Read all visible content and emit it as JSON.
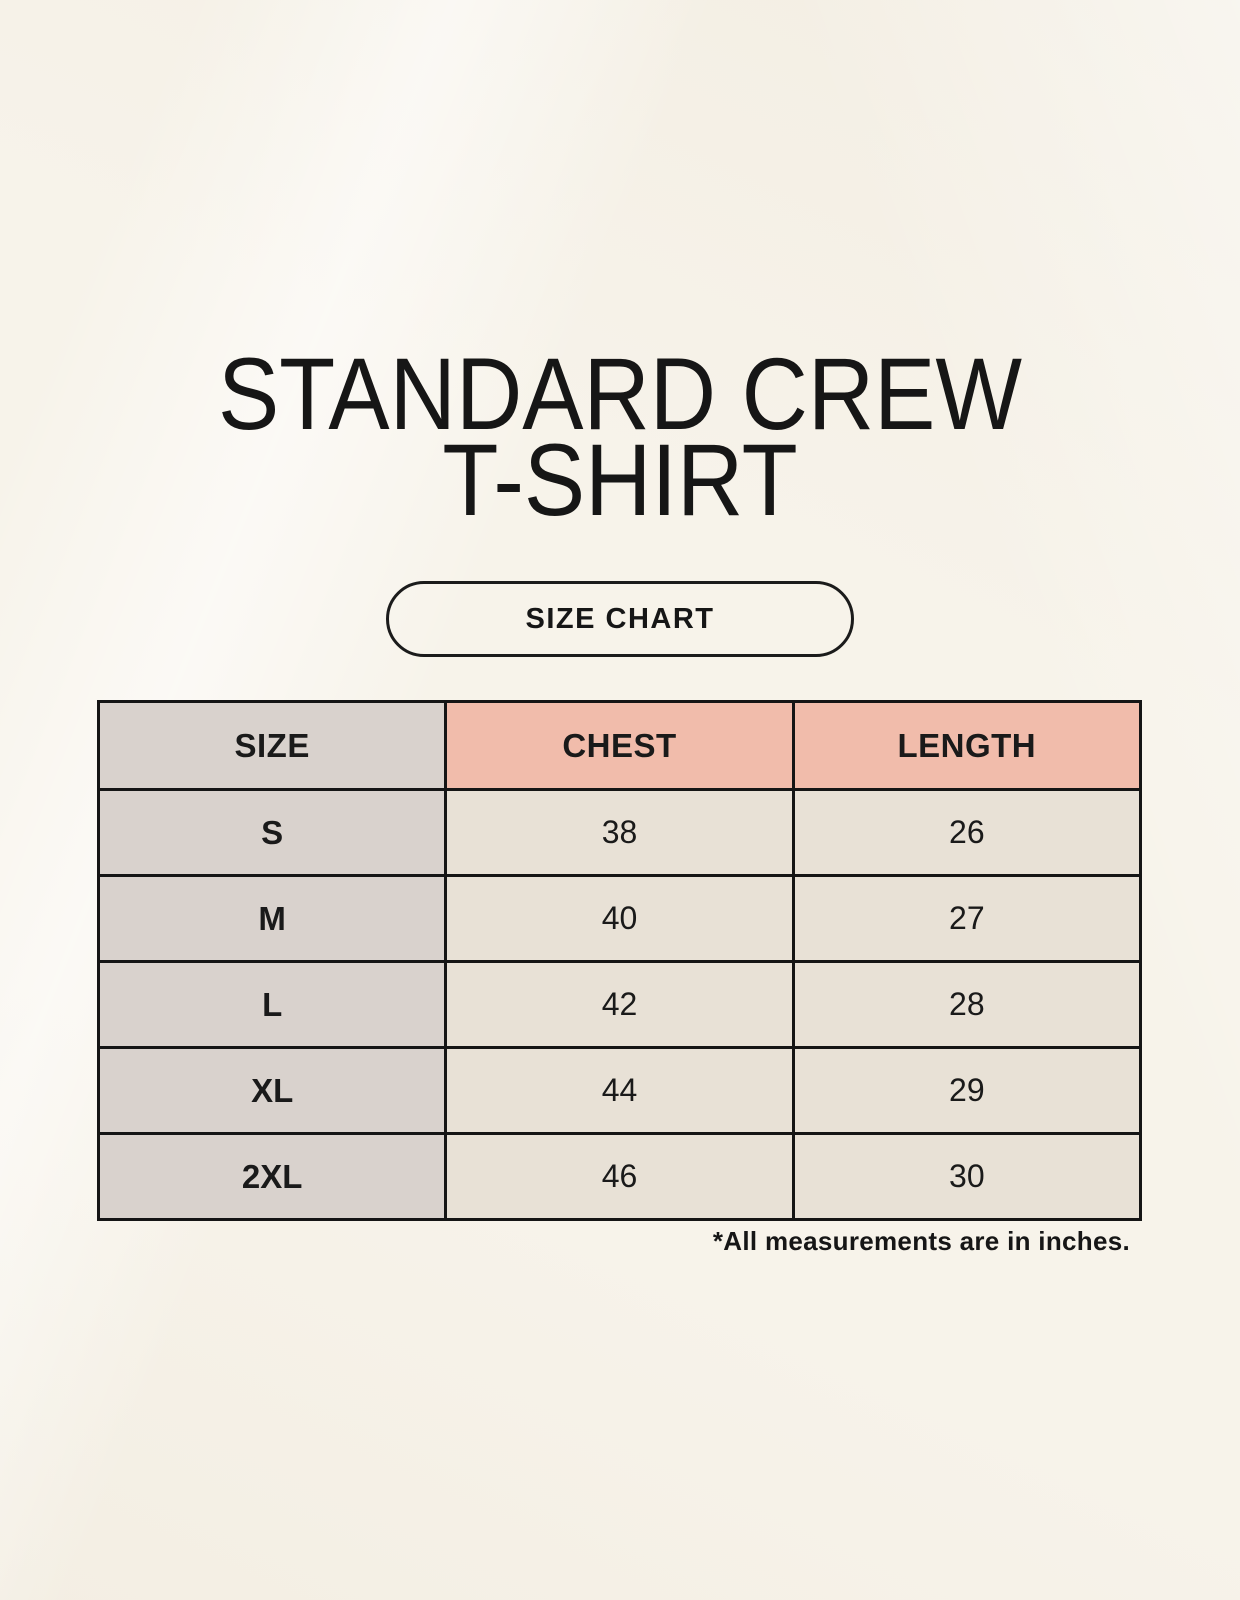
{
  "header": {
    "title_line1": "STANDARD CREW",
    "title_line2": "T-SHIRT",
    "badge_label": "SIZE CHART"
  },
  "table": {
    "columns": [
      "SIZE",
      "CHEST",
      "LENGTH"
    ],
    "rows": [
      {
        "size": "S",
        "chest": "38",
        "length": "26"
      },
      {
        "size": "M",
        "chest": "40",
        "length": "27"
      },
      {
        "size": "L",
        "chest": "42",
        "length": "28"
      },
      {
        "size": "XL",
        "chest": "44",
        "length": "29"
      },
      {
        "size": "2XL",
        "chest": "46",
        "length": "30"
      }
    ]
  },
  "footnote": "*All measurements are in inches.",
  "colors": {
    "page_background": "#f7f3ea",
    "header_pink": "#f1bcab",
    "size_column_gray": "#d9d2cd",
    "value_cell_cream": "#e8e1d6",
    "border_black": "#151515",
    "text_black": "#161616"
  },
  "chart_data": {
    "type": "table",
    "title": "STANDARD CREW T-SHIRT",
    "columns": [
      "SIZE",
      "CHEST",
      "LENGTH"
    ],
    "rows": [
      [
        "S",
        38,
        26
      ],
      [
        "M",
        40,
        27
      ],
      [
        "L",
        42,
        28
      ],
      [
        "XL",
        44,
        29
      ],
      [
        "2XL",
        46,
        30
      ]
    ],
    "note": "*All measurements are in inches."
  }
}
